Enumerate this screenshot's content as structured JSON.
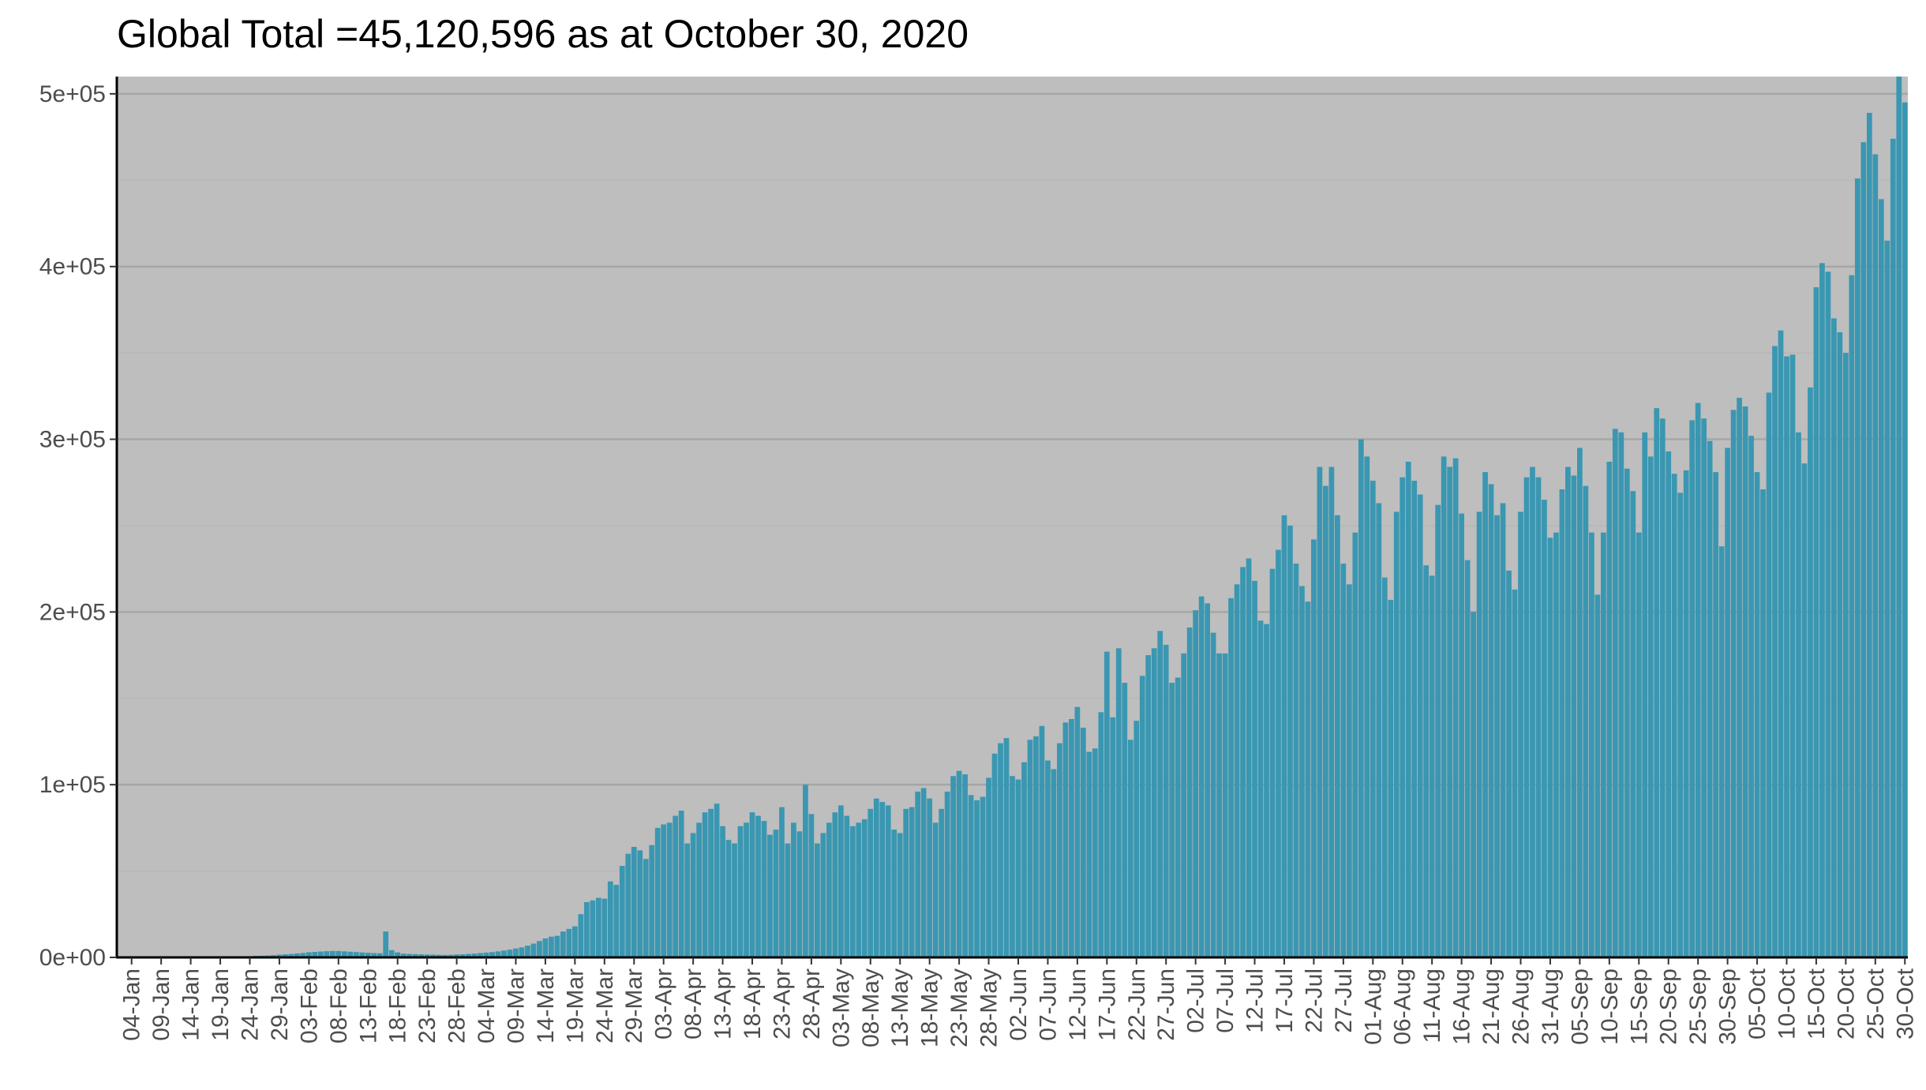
{
  "chart_data": {
    "type": "bar",
    "title": "Global Total =45,120,596 as at October 30, 2020",
    "xlabel": "",
    "ylabel": "",
    "x_start": "2020-01-02",
    "x_end": "2020-10-30",
    "ylim": [
      0,
      510000
    ],
    "y_ticks": [
      0,
      100000,
      200000,
      300000,
      400000,
      500000
    ],
    "y_tick_labels": [
      "0e+00",
      "1e+05",
      "2e+05",
      "3e+05",
      "4e+05",
      "5e+05"
    ],
    "x_tick_labels": [
      "04-Jan",
      "09-Jan",
      "14-Jan",
      "19-Jan",
      "24-Jan",
      "29-Jan",
      "03-Feb",
      "08-Feb",
      "13-Feb",
      "18-Feb",
      "23-Feb",
      "28-Feb",
      "04-Mar",
      "09-Mar",
      "14-Mar",
      "19-Mar",
      "24-Mar",
      "29-Mar",
      "03-Apr",
      "08-Apr",
      "13-Apr",
      "18-Apr",
      "23-Apr",
      "28-Apr",
      "03-May",
      "08-May",
      "13-May",
      "18-May",
      "23-May",
      "28-May",
      "02-Jun",
      "07-Jun",
      "12-Jun",
      "17-Jun",
      "22-Jun",
      "27-Jun",
      "02-Jul",
      "07-Jul",
      "12-Jul",
      "17-Jul",
      "22-Jul",
      "27-Jul",
      "01-Aug",
      "06-Aug",
      "11-Aug",
      "16-Aug",
      "21-Aug",
      "26-Aug",
      "31-Aug",
      "05-Sep",
      "10-Sep",
      "15-Sep",
      "20-Sep",
      "25-Sep",
      "30-Sep",
      "05-Oct",
      "10-Oct",
      "15-Oct",
      "20-Oct",
      "25-Oct",
      "30-Oct"
    ],
    "grid": true,
    "legend": "none",
    "colors": {
      "bar": "#3a97b2",
      "panel": "#bebebe",
      "grid_major": "#a6a6a6",
      "grid_minor": "#b3b3b3",
      "axis": "#000000"
    },
    "values": [
      0,
      0,
      0,
      0,
      0,
      0,
      0,
      0,
      0,
      0,
      0,
      0,
      0,
      0,
      0,
      0,
      0,
      0,
      0,
      500,
      700,
      900,
      1000,
      1100,
      1300,
      1600,
      1800,
      2000,
      2300,
      2600,
      3000,
      3200,
      3400,
      3600,
      3700,
      3700,
      3500,
      3300,
      3100,
      2900,
      2700,
      2500,
      2400,
      15000,
      4200,
      2900,
      2200,
      2000,
      1900,
      1800,
      1700,
      1600,
      1500,
      1400,
      1500,
      1700,
      1800,
      2000,
      2200,
      2500,
      2800,
      3100,
      3500,
      4000,
      4500,
      5200,
      5800,
      6800,
      8000,
      9500,
      11000,
      12000,
      12500,
      15000,
      16500,
      18000,
      25000,
      32000,
      33000,
      34500,
      34000,
      44000,
      42000,
      53000,
      60000,
      64000,
      62000,
      57000,
      65000,
      75000,
      77000,
      78000,
      82000,
      85000,
      66000,
      72000,
      78000,
      84000,
      86000,
      89000,
      76000,
      68000,
      66000,
      76000,
      78000,
      84000,
      82000,
      79000,
      71000,
      74000,
      87000,
      66000,
      78000,
      73000,
      100000,
      83000,
      66000,
      72000,
      78000,
      84000,
      88000,
      82000,
      76000,
      78000,
      80000,
      86000,
      92000,
      90000,
      88000,
      74000,
      72000,
      86000,
      87000,
      96000,
      98000,
      92000,
      78000,
      86000,
      96000,
      105000,
      108000,
      106000,
      94000,
      91000,
      93000,
      104000,
      118000,
      124000,
      127000,
      105000,
      103000,
      113000,
      126000,
      128000,
      134000,
      114000,
      109000,
      124000,
      136000,
      138000,
      145000,
      133000,
      119000,
      121000,
      142000,
      177000,
      139000,
      179000,
      159000,
      126000,
      137000,
      163000,
      175000,
      179000,
      189000,
      181000,
      159000,
      162000,
      176000,
      191000,
      201000,
      209000,
      205000,
      188000,
      176000,
      176000,
      208000,
      216000,
      226000,
      231000,
      218000,
      195000,
      193000,
      225000,
      236000,
      256000,
      250000,
      228000,
      215000,
      206000,
      242000,
      284000,
      273000,
      284000,
      256000,
      228000,
      216000,
      246000,
      300000,
      290000,
      276000,
      263000,
      220000,
      207000,
      258000,
      278000,
      287000,
      276000,
      268000,
      227000,
      221000,
      262000,
      290000,
      284000,
      289000,
      257000,
      230000,
      200000,
      258000,
      281000,
      274000,
      256000,
      263000,
      224000,
      213000,
      258000,
      278000,
      284000,
      278000,
      265000,
      243000,
      246000,
      271000,
      284000,
      279000,
      295000,
      273000,
      246000,
      210000,
      246000,
      287000,
      306000,
      304000,
      283000,
      270000,
      246000,
      304000,
      290000,
      318000,
      312000,
      293000,
      280000,
      269000,
      282000,
      311000,
      321000,
      312000,
      299000,
      281000,
      238000,
      295000,
      317000,
      324000,
      319000,
      302000,
      281000,
      271000,
      327000,
      354000,
      363000,
      348000,
      349000,
      304000,
      286000,
      330000,
      388000,
      402000,
      397000,
      370000,
      362000,
      350000,
      395000,
      451000,
      472000,
      489000,
      465000,
      439000,
      415000,
      474000,
      510000,
      495000
    ]
  }
}
